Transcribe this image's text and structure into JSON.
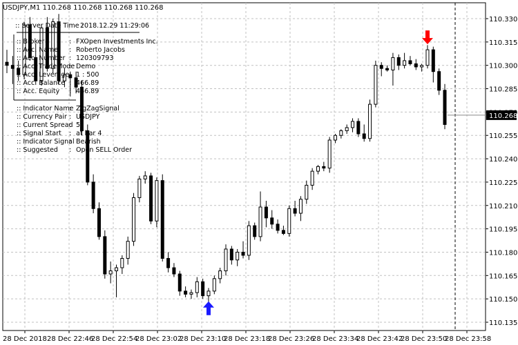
{
  "window": {
    "header": "USDJPY,M1  110.268 110.268 110.268 110.268"
  },
  "info_panel": {
    "server_time_label": ":: Server Date Time :",
    "server_time_value": "2018.12.29     11:29:06",
    "rows_account": [
      {
        "label": ":: Broker",
        "value": "FXOpen Investments Inc."
      },
      {
        "label": ":: Acc. Name",
        "value": "Roberto Jacobs"
      },
      {
        "label": ":: Acc. Number",
        "value": "120309793"
      },
      {
        "label": ":: Acc. TradeMode",
        "value": "Demo"
      },
      {
        "label": ":: Acc. Leverage",
        "value": "1 : 500"
      },
      {
        "label": ":: Acc. Balance",
        "value": "466.89"
      },
      {
        "label": ":: Acc. Equity",
        "value": "466.89"
      }
    ],
    "rows_indicator": [
      {
        "label": ":: Indicator Name",
        "value": "ZigZagSignal"
      },
      {
        "label": ":: Currency Pair",
        "value": "USDJPY"
      },
      {
        "label": ":: Current Spread",
        "value": "5"
      },
      {
        "label": ":: Signal Start",
        "value": "at bar 4"
      },
      {
        "label": ":: Indicator Signal",
        "value": "Bearish"
      },
      {
        "label": ":: Suggested",
        "value": "Open SELL Order"
      }
    ],
    "separator": ":"
  },
  "current_price_label": "110.268",
  "colors": {
    "background": "#ffffff",
    "grid": "#c0c0c0",
    "candle": "#000000",
    "up_arrow": "#1a1aff",
    "down_arrow": "#ff0000",
    "price_tag_bg": "#000000",
    "price_tag_text": "#ffffff"
  },
  "chart_data": {
    "type": "candlestick",
    "symbol": "USDJPY",
    "timeframe": "M1",
    "y_ticks": [
      "110.330",
      "110.315",
      "110.300",
      "110.285",
      "110.270",
      "110.255",
      "110.240",
      "110.225",
      "110.210",
      "110.195",
      "110.180",
      "110.165",
      "110.150",
      "110.135"
    ],
    "ylim": [
      110.132,
      110.337
    ],
    "x_ticks": [
      "28 Dec 2018",
      "28 Dec 22:46",
      "28 Dec 22:54",
      "28 Dec 23:02",
      "28 Dec 23:10",
      "28 Dec 23:18",
      "28 Dec 23:26",
      "28 Dec 23:34",
      "28 Dec 23:42",
      "28 Dec 23:50",
      "28 Dec 23:58"
    ],
    "grid": true,
    "candles": [
      {
        "o": 110.302,
        "h": 110.31,
        "l": 110.295,
        "c": 110.3
      },
      {
        "o": 110.3,
        "h": 110.306,
        "l": 110.288,
        "c": 110.298
      },
      {
        "o": 110.298,
        "h": 110.303,
        "l": 110.29,
        "c": 110.294
      },
      {
        "o": 110.294,
        "h": 110.328,
        "l": 110.291,
        "c": 110.326
      },
      {
        "o": 110.326,
        "h": 110.331,
        "l": 110.303,
        "c": 110.305
      },
      {
        "o": 110.305,
        "h": 110.314,
        "l": 110.288,
        "c": 110.29
      },
      {
        "o": 110.29,
        "h": 110.326,
        "l": 110.287,
        "c": 110.324
      },
      {
        "o": 110.324,
        "h": 110.331,
        "l": 110.296,
        "c": 110.298
      },
      {
        "o": 110.298,
        "h": 110.33,
        "l": 110.295,
        "c": 110.328
      },
      {
        "o": 110.328,
        "h": 110.333,
        "l": 110.288,
        "c": 110.29
      },
      {
        "o": 110.29,
        "h": 110.298,
        "l": 110.286,
        "c": 110.294
      },
      {
        "o": 110.294,
        "h": 110.296,
        "l": 110.28,
        "c": 110.292
      },
      {
        "o": 110.292,
        "h": 110.296,
        "l": 110.282,
        "c": 110.286
      },
      {
        "o": 110.286,
        "h": 110.29,
        "l": 110.255,
        "c": 110.258
      },
      {
        "o": 110.258,
        "h": 110.262,
        "l": 110.223,
        "c": 110.225
      },
      {
        "o": 110.225,
        "h": 110.23,
        "l": 110.205,
        "c": 110.208
      },
      {
        "o": 110.208,
        "h": 110.212,
        "l": 110.188,
        "c": 110.19
      },
      {
        "o": 110.19,
        "h": 110.194,
        "l": 110.163,
        "c": 110.166
      },
      {
        "o": 110.166,
        "h": 110.174,
        "l": 110.16,
        "c": 110.168
      },
      {
        "o": 110.168,
        "h": 110.172,
        "l": 110.151,
        "c": 110.17
      },
      {
        "o": 110.17,
        "h": 110.178,
        "l": 110.166,
        "c": 110.176
      },
      {
        "o": 110.176,
        "h": 110.19,
        "l": 110.172,
        "c": 110.187
      },
      {
        "o": 110.187,
        "h": 110.218,
        "l": 110.184,
        "c": 110.215
      },
      {
        "o": 110.215,
        "h": 110.229,
        "l": 110.212,
        "c": 110.227
      },
      {
        "o": 110.227,
        "h": 110.232,
        "l": 110.224,
        "c": 110.229
      },
      {
        "o": 110.229,
        "h": 110.231,
        "l": 110.198,
        "c": 110.2
      },
      {
        "o": 110.2,
        "h": 110.228,
        "l": 110.196,
        "c": 110.226
      },
      {
        "o": 110.226,
        "h": 110.23,
        "l": 110.174,
        "c": 110.176
      },
      {
        "o": 110.176,
        "h": 110.18,
        "l": 110.167,
        "c": 110.17
      },
      {
        "o": 110.17,
        "h": 110.173,
        "l": 110.164,
        "c": 110.166
      },
      {
        "o": 110.166,
        "h": 110.168,
        "l": 110.152,
        "c": 110.155
      },
      {
        "o": 110.155,
        "h": 110.158,
        "l": 110.151,
        "c": 110.153
      },
      {
        "o": 110.153,
        "h": 110.156,
        "l": 110.15,
        "c": 110.154
      },
      {
        "o": 110.154,
        "h": 110.164,
        "l": 110.151,
        "c": 110.161
      },
      {
        "o": 110.161,
        "h": 110.163,
        "l": 110.15,
        "c": 110.152
      },
      {
        "o": 110.152,
        "h": 110.157,
        "l": 110.148,
        "c": 110.155
      },
      {
        "o": 110.155,
        "h": 110.165,
        "l": 110.153,
        "c": 110.163
      },
      {
        "o": 110.163,
        "h": 110.17,
        "l": 110.16,
        "c": 110.168
      },
      {
        "o": 110.168,
        "h": 110.185,
        "l": 110.165,
        "c": 110.182
      },
      {
        "o": 110.182,
        "h": 110.184,
        "l": 110.172,
        "c": 110.175
      },
      {
        "o": 110.175,
        "h": 110.182,
        "l": 110.171,
        "c": 110.18
      },
      {
        "o": 110.18,
        "h": 110.187,
        "l": 110.176,
        "c": 110.178
      },
      {
        "o": 110.178,
        "h": 110.2,
        "l": 110.175,
        "c": 110.197
      },
      {
        "o": 110.197,
        "h": 110.199,
        "l": 110.188,
        "c": 110.19
      },
      {
        "o": 110.19,
        "h": 110.219,
        "l": 110.187,
        "c": 110.209
      },
      {
        "o": 110.209,
        "h": 110.213,
        "l": 110.196,
        "c": 110.202
      },
      {
        "o": 110.202,
        "h": 110.207,
        "l": 110.195,
        "c": 110.198
      },
      {
        "o": 110.198,
        "h": 110.201,
        "l": 110.192,
        "c": 110.194
      },
      {
        "o": 110.194,
        "h": 110.197,
        "l": 110.191,
        "c": 110.192
      },
      {
        "o": 110.192,
        "h": 110.21,
        "l": 110.19,
        "c": 110.208
      },
      {
        "o": 110.208,
        "h": 110.213,
        "l": 110.203,
        "c": 110.205
      },
      {
        "o": 110.205,
        "h": 110.216,
        "l": 110.2,
        "c": 110.214
      },
      {
        "o": 110.214,
        "h": 110.226,
        "l": 110.211,
        "c": 110.223
      },
      {
        "o": 110.223,
        "h": 110.234,
        "l": 110.22,
        "c": 110.232
      },
      {
        "o": 110.232,
        "h": 110.236,
        "l": 110.23,
        "c": 110.235
      },
      {
        "o": 110.235,
        "h": 110.238,
        "l": 110.232,
        "c": 110.234
      },
      {
        "o": 110.234,
        "h": 110.254,
        "l": 110.231,
        "c": 110.252
      },
      {
        "o": 110.252,
        "h": 110.256,
        "l": 110.25,
        "c": 110.255
      },
      {
        "o": 110.255,
        "h": 110.259,
        "l": 110.253,
        "c": 110.258
      },
      {
        "o": 110.258,
        "h": 110.262,
        "l": 110.256,
        "c": 110.26
      },
      {
        "o": 110.26,
        "h": 110.266,
        "l": 110.257,
        "c": 110.264
      },
      {
        "o": 110.264,
        "h": 110.266,
        "l": 110.254,
        "c": 110.256
      },
      {
        "o": 110.256,
        "h": 110.262,
        "l": 110.251,
        "c": 110.253
      },
      {
        "o": 110.253,
        "h": 110.278,
        "l": 110.251,
        "c": 110.275
      },
      {
        "o": 110.275,
        "h": 110.303,
        "l": 110.273,
        "c": 110.3
      },
      {
        "o": 110.3,
        "h": 110.302,
        "l": 110.293,
        "c": 110.298
      },
      {
        "o": 110.298,
        "h": 110.3,
        "l": 110.296,
        "c": 110.297
      },
      {
        "o": 110.297,
        "h": 110.308,
        "l": 110.287,
        "c": 110.305
      },
      {
        "o": 110.305,
        "h": 110.307,
        "l": 110.297,
        "c": 110.3
      },
      {
        "o": 110.3,
        "h": 110.308,
        "l": 110.298,
        "c": 110.303
      },
      {
        "o": 110.303,
        "h": 110.306,
        "l": 110.3,
        "c": 110.301
      },
      {
        "o": 110.301,
        "h": 110.304,
        "l": 110.297,
        "c": 110.299
      },
      {
        "o": 110.299,
        "h": 110.301,
        "l": 110.296,
        "c": 110.3
      },
      {
        "o": 110.3,
        "h": 110.313,
        "l": 110.298,
        "c": 110.31
      },
      {
        "o": 110.31,
        "h": 110.312,
        "l": 110.289,
        "c": 110.296
      },
      {
        "o": 110.296,
        "h": 110.298,
        "l": 110.281,
        "c": 110.284
      },
      {
        "o": 110.284,
        "h": 110.288,
        "l": 110.259,
        "c": 110.262
      }
    ],
    "signals": [
      {
        "type": "buy",
        "bar_index": 35,
        "price": 110.144
      },
      {
        "type": "sell",
        "bar_index": 73,
        "price": 110.318
      }
    ],
    "current_price": 110.268
  }
}
